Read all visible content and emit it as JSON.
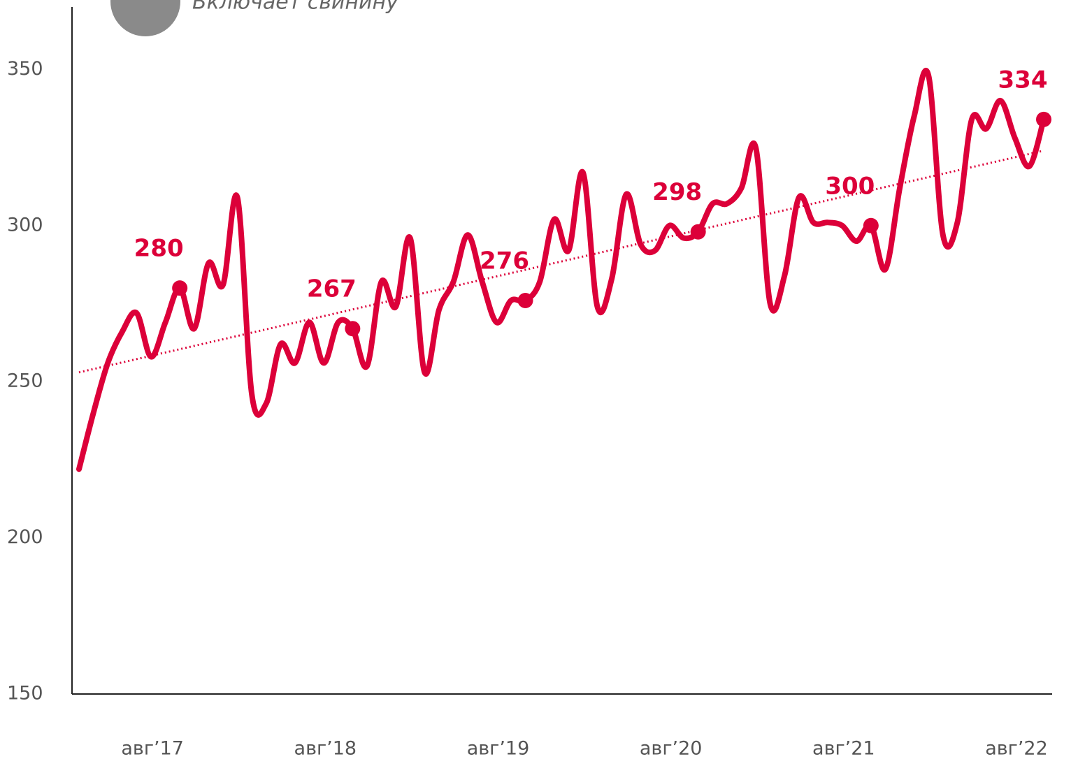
{
  "chart_data": {
    "type": "line",
    "subtitle": "Включает свинину",
    "categories": [
      null,
      null,
      null,
      null,
      null,
      null,
      null,
      "авг’17",
      null,
      null,
      null,
      null,
      null,
      null,
      null,
      null,
      null,
      null,
      null,
      "авг’18",
      null,
      null,
      null,
      null,
      null,
      null,
      null,
      null,
      null,
      null,
      null,
      "авг’19",
      null,
      null,
      null,
      null,
      null,
      null,
      null,
      null,
      null,
      null,
      null,
      "авг’20",
      null,
      null,
      null,
      null,
      null,
      null,
      null,
      null,
      null,
      null,
      null,
      "авг’21",
      null,
      null,
      null,
      null,
      null,
      null,
      null,
      null,
      null,
      null,
      null,
      "авг’22"
    ],
    "values": [
      222,
      240,
      256,
      266,
      272,
      258,
      269,
      280,
      267,
      288,
      281,
      309,
      246,
      243,
      262,
      256,
      269,
      256,
      269,
      267,
      255,
      282,
      274,
      296,
      253,
      273,
      282,
      297,
      282,
      269,
      276,
      276,
      282,
      302,
      292,
      317,
      274,
      283,
      310,
      294,
      292,
      300,
      296,
      298,
      307,
      307,
      312,
      325,
      275,
      284,
      309,
      301,
      301,
      300,
      295,
      300,
      286,
      312,
      335,
      348,
      297,
      301,
      334,
      331,
      340,
      328,
      319,
      334
    ],
    "color": "#dc0039",
    "trendline": {
      "start": 253,
      "end": 324,
      "color": "#dc0039"
    },
    "ylim": [
      150,
      370
    ],
    "yticks": [
      150,
      200,
      250,
      300,
      350
    ]
  }
}
